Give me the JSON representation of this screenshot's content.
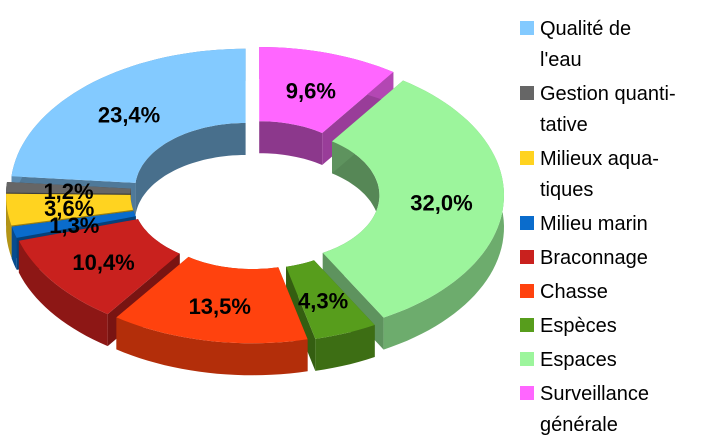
{
  "chart_data": {
    "type": "donut3d",
    "categories": [
      "Qualité de\nl'eau",
      "Gestion quanti-\ntative",
      "Milieux aqua-\ntiques",
      "Milieu marin",
      "Braconnage",
      "Chasse",
      "Espèces",
      "Espaces",
      "Surveillance\ngénérale"
    ],
    "values": [
      23.4,
      1.2,
      3.6,
      1.3,
      10.4,
      13.5,
      4.3,
      32.0,
      9.6
    ],
    "value_labels": [
      "23,4%",
      "1,2%",
      "3,6%",
      "1,3%",
      "10,4%",
      "13,5%",
      "4,3%",
      "32,0%",
      "9,6%"
    ],
    "colors": [
      "#83caff",
      "#666666",
      "#ffd320",
      "#0a6ccc",
      "#c9211e",
      "#ff420e",
      "#579d1c",
      "#9cf59c",
      "#ff66ff"
    ],
    "legend": "right"
  }
}
